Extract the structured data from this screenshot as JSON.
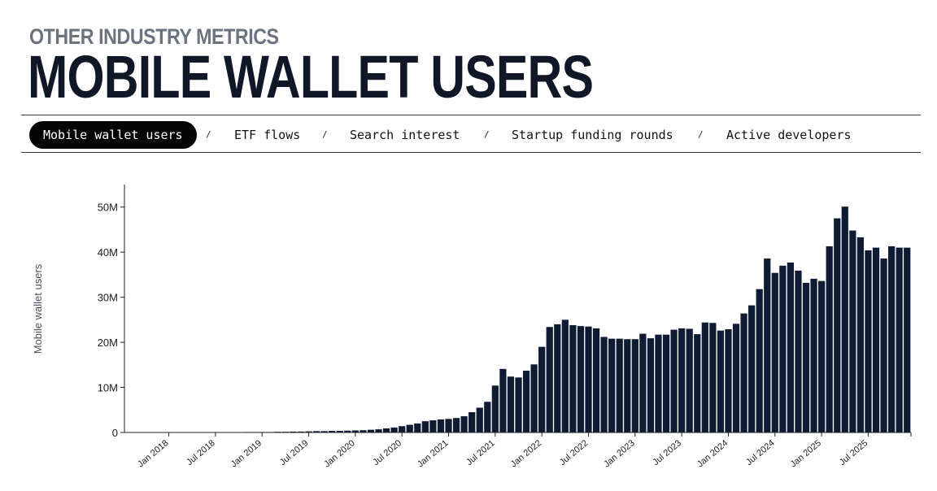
{
  "header": {
    "eyebrow": "OTHER INDUSTRY METRICS",
    "title": "MOBILE WALLET USERS"
  },
  "tabs": [
    {
      "label": "Mobile wallet users",
      "active": true
    },
    {
      "label": "ETF flows",
      "active": false
    },
    {
      "label": "Search interest",
      "active": false
    },
    {
      "label": "Startup funding rounds",
      "active": false
    },
    {
      "label": "Active developers",
      "active": false
    }
  ],
  "separator": "/",
  "colors": {
    "bar": "#0f1a33",
    "axis": "#222222",
    "accent": "#050505"
  },
  "chart_data": {
    "type": "bar",
    "title": "MOBILE WALLET USERS",
    "ylabel": "Mobile wallet users",
    "xlabel": "",
    "ylim": [
      0,
      55000000
    ],
    "y_ticks": [
      0,
      10000000,
      20000000,
      30000000,
      40000000,
      50000000
    ],
    "y_tick_labels": [
      "0",
      "10M",
      "20M",
      "30M",
      "40M",
      "50M"
    ],
    "x_tick_labels": [
      "Jan 2018",
      "Jul 2018",
      "Jan 2019",
      "Jul 2019",
      "Jan 2020",
      "Jul 2020",
      "Jan 2021",
      "Jul 2021",
      "Jan 2022",
      "Jul 2022",
      "Jan 2023",
      "Jul 2023",
      "Jan 2024",
      "Jul 2024",
      "Jan 2025",
      "Jul 2025"
    ],
    "start": "Aug 2017",
    "interval": "monthly",
    "values_millions": [
      0.0,
      0.0,
      0.0,
      0.0,
      0.0,
      0.0,
      0.0,
      0.0,
      0.0,
      0.0,
      0.0,
      0.0,
      0.05,
      0.05,
      0.05,
      0.1,
      0.1,
      0.1,
      0.1,
      0.15,
      0.15,
      0.2,
      0.2,
      0.25,
      0.3,
      0.3,
      0.35,
      0.35,
      0.4,
      0.45,
      0.5,
      0.6,
      0.7,
      0.9,
      1.1,
      1.4,
      1.7,
      2.0,
      2.5,
      2.7,
      2.9,
      3.0,
      3.2,
      3.6,
      4.5,
      5.5,
      6.8,
      10.4,
      14.1,
      12.4,
      12.2,
      13.7,
      15.1,
      19.0,
      23.4,
      24.0,
      25.0,
      23.8,
      23.6,
      23.5,
      23.1,
      21.2,
      20.8,
      20.8,
      20.7,
      20.7,
      21.9,
      20.9,
      21.7,
      21.7,
      22.8,
      23.1,
      23.0,
      21.8,
      24.4,
      24.3,
      22.6,
      22.9,
      24.1,
      26.4,
      28.2,
      31.8,
      38.6,
      35.4,
      37.0,
      37.7,
      35.9,
      33.2,
      34.1,
      33.6,
      41.3,
      47.5,
      50.1,
      44.8,
      43.3,
      40.4,
      41.0,
      38.6,
      41.3,
      41.0,
      41.0
    ]
  }
}
